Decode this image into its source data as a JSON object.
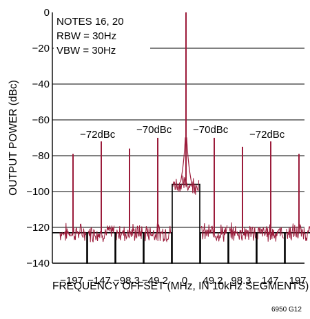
{
  "chart_data": {
    "type": "line",
    "xlabel": "FREQUENCY OFFSET (MHz, IN 10kHz SEGMENTS)",
    "ylabel": "OUTPUT POWER (dBc)",
    "ylim": [
      -140,
      0
    ],
    "yticks": [
      0,
      -20,
      -40,
      -60,
      -80,
      -100,
      -120,
      -140
    ],
    "xticks": [
      "−197",
      "−147",
      "−98.3",
      "−49.2",
      "0",
      "49.2",
      "98.3",
      "147",
      "197"
    ],
    "notes": [
      "NOTES 16, 20",
      "RBW = 30Hz",
      "VBW = 30Hz"
    ],
    "annotations": [
      "−72dBc",
      "−70dBc",
      "−70dBc",
      "−72dBc"
    ],
    "figure_id": "6950 G12",
    "grid": true,
    "series": [
      {
        "color": "#9b1b3a",
        "segments": [
          {
            "x": "−197",
            "floor": -123,
            "spur": -79
          },
          {
            "x": "−147",
            "floor": -123,
            "spur": -72
          },
          {
            "x": "−98.3",
            "floor": -123,
            "spur": -76
          },
          {
            "x": "−49.2",
            "floor": -123,
            "spur": -70
          },
          {
            "x": "0",
            "floor": -96,
            "spur": 0
          },
          {
            "x": "49.2",
            "floor": -123,
            "spur": -70
          },
          {
            "x": "98.3",
            "floor": -123,
            "spur": -75
          },
          {
            "x": "147",
            "floor": -123,
            "spur": -72
          },
          {
            "x": "197",
            "floor": -123,
            "spur": -79
          }
        ]
      }
    ]
  }
}
